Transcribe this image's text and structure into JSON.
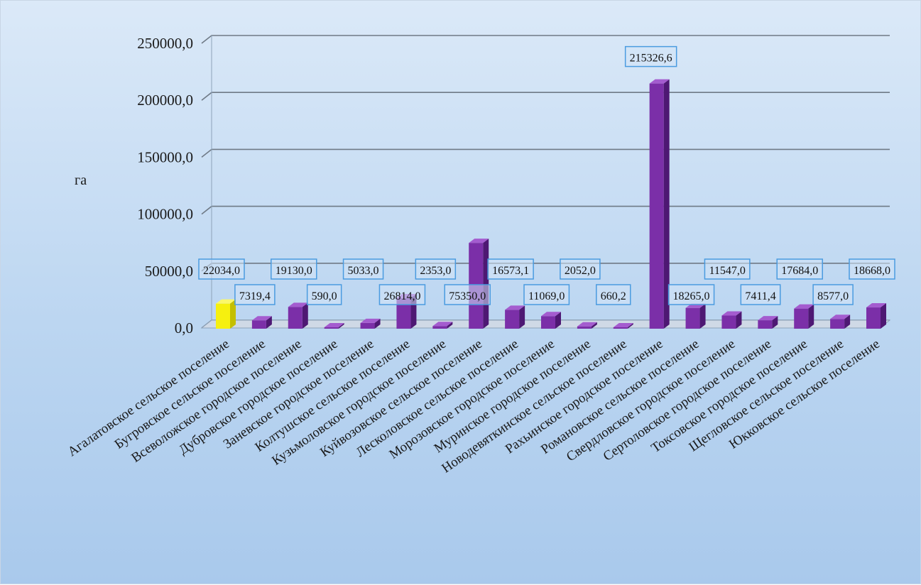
{
  "chart_data": {
    "type": "bar",
    "ylabel": "га",
    "ylim": [
      0,
      250000
    ],
    "yticks": [
      0,
      50000,
      100000,
      150000,
      200000,
      250000
    ],
    "ytick_labels": [
      "0,0",
      "50000,0",
      "100000,0",
      "150000,0",
      "200000,0",
      "250000,0"
    ],
    "grid": true,
    "style": "3d-column",
    "categories": [
      "Агалатовское сельское поселение",
      "Бугровское сельское поселение",
      "Всеволожское городское поселение",
      "Дубровское городское поселение",
      "Заневское городское поселение",
      "Колтушское сельское поселение",
      "Кузьмоловское городское поселение",
      "Куйвозовское сельское поселение",
      "Лесколовское сельское поселение",
      "Морозовское городское поселение",
      "Муринское городское поселение",
      "Новодевяткинское сельское поселение",
      "Рахьинское городское поселение",
      "Романовское сельское поселение",
      "Свердловское городское поселение",
      "Сертоловское городское поселение",
      "Токсовское городское поселение",
      "Щегловское сельское поселение",
      "Юкковское сельское поселение"
    ],
    "values": [
      22034.0,
      7319.4,
      19130.0,
      590.0,
      5033.0,
      26814.0,
      2353.0,
      75350.0,
      16573.1,
      11069.0,
      2052.0,
      660.2,
      215326.6,
      18265.0,
      11547.0,
      7411.4,
      17684.0,
      8577.0,
      18668.0
    ],
    "value_labels": [
      "22034,0",
      "7319,4",
      "19130,0",
      "590,0",
      "5033,0",
      "26814,0",
      "2353,0",
      "75350,0",
      "16573,1",
      "11069,0",
      "2052,0",
      "660,2",
      "215326,6",
      "18265,0",
      "11547,0",
      "7411,4",
      "17684,0",
      "8577,0",
      "18668,0"
    ],
    "highlight_index": 0,
    "colors": {
      "bar": "#7b2fa8",
      "bar_side": "#4e1873",
      "bar_top": "#a45ccf",
      "highlight": "#f6f00f",
      "highlight_side": "#c4bf00",
      "highlight_top": "#fbf86a",
      "gridline": "#6f7a86",
      "label_border": "#4a9be0"
    }
  }
}
